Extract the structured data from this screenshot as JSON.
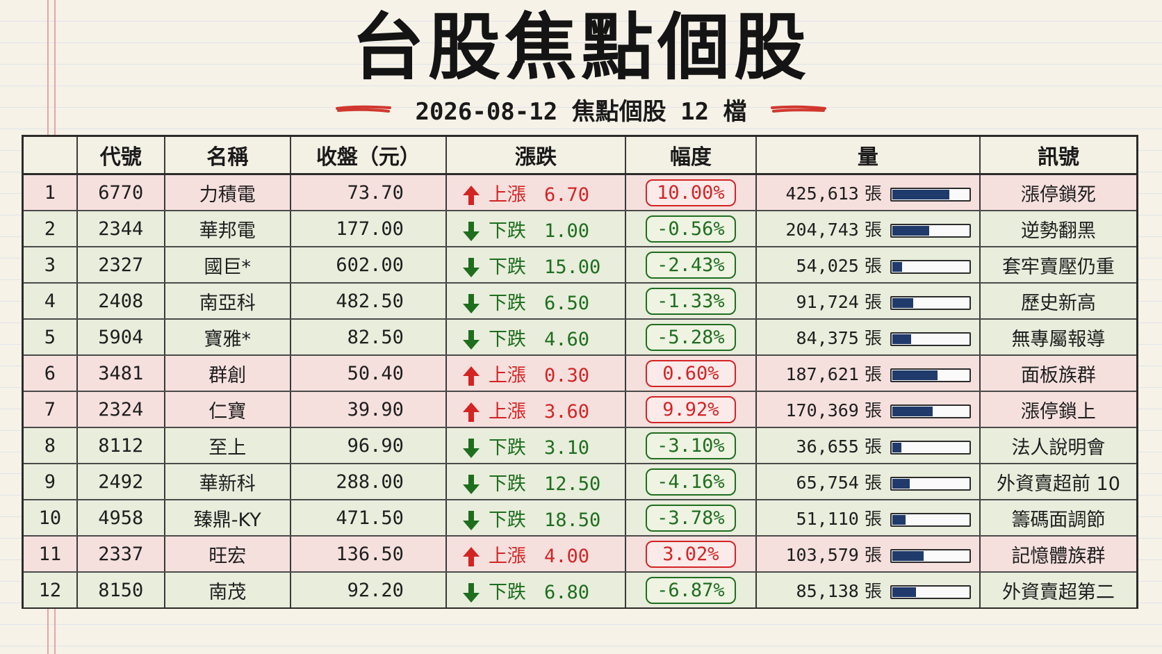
{
  "title": "台股焦點個股",
  "subtitle": "2026-08-12 焦點個股 12 檔",
  "colors": {
    "up": "#d32424",
    "down": "#1e6e1e",
    "bar": "#1f3a6b"
  },
  "headers": [
    "",
    "代號",
    "名稱",
    "收盤（元）",
    "漲跌",
    "幅度",
    "量",
    "訊號"
  ],
  "volume_unit": "張",
  "rows": [
    {
      "rank": "1",
      "code": "6770",
      "name": "力積電",
      "close": "73.70",
      "direction": "up",
      "change_word": "上漲",
      "change": "6.70",
      "pct": "10.00%",
      "volume": "425,613",
      "volume_level": 0.75,
      "signal": "漲停鎖死"
    },
    {
      "rank": "2",
      "code": "2344",
      "name": "華邦電",
      "close": "177.00",
      "direction": "down",
      "change_word": "下跌",
      "change": "1.00",
      "pct": "-0.56%",
      "volume": "204,743",
      "volume_level": 0.48,
      "signal": "逆勢翻黑"
    },
    {
      "rank": "3",
      "code": "2327",
      "name": "國巨*",
      "close": "602.00",
      "direction": "down",
      "change_word": "下跌",
      "change": "15.00",
      "pct": "-2.43%",
      "volume": "54,025",
      "volume_level": 0.13,
      "signal": "套牢賣壓仍重"
    },
    {
      "rank": "4",
      "code": "2408",
      "name": "南亞科",
      "close": "482.50",
      "direction": "down",
      "change_word": "下跌",
      "change": "6.50",
      "pct": "-1.33%",
      "volume": "91,724",
      "volume_level": 0.27,
      "signal": "歷史新高"
    },
    {
      "rank": "5",
      "code": "5904",
      "name": "寶雅*",
      "close": "82.50",
      "direction": "down",
      "change_word": "下跌",
      "change": "4.60",
      "pct": "-5.28%",
      "volume": "84,375",
      "volume_level": 0.25,
      "signal": "無專屬報導"
    },
    {
      "rank": "6",
      "code": "3481",
      "name": "群創",
      "close": "50.40",
      "direction": "up",
      "change_word": "上漲",
      "change": "0.30",
      "pct": "0.60%",
      "volume": "187,621",
      "volume_level": 0.59,
      "signal": "面板族群"
    },
    {
      "rank": "7",
      "code": "2324",
      "name": "仁寶",
      "close": "39.90",
      "direction": "up",
      "change_word": "上漲",
      "change": "3.60",
      "pct": "9.92%",
      "volume": "170,369",
      "volume_level": 0.53,
      "signal": "漲停鎖上"
    },
    {
      "rank": "8",
      "code": "8112",
      "name": "至上",
      "close": "96.90",
      "direction": "down",
      "change_word": "下跌",
      "change": "3.10",
      "pct": "-3.10%",
      "volume": "36,655",
      "volume_level": 0.12,
      "signal": "法人說明會"
    },
    {
      "rank": "9",
      "code": "2492",
      "name": "華新科",
      "close": "288.00",
      "direction": "down",
      "change_word": "下跌",
      "change": "12.50",
      "pct": "-4.16%",
      "volume": "65,754",
      "volume_level": 0.23,
      "signal": "外資賣超前 10"
    },
    {
      "rank": "10",
      "code": "4958",
      "name": "臻鼎-KY",
      "close": "471.50",
      "direction": "down",
      "change_word": "下跌",
      "change": "18.50",
      "pct": "-3.78%",
      "volume": "51,110",
      "volume_level": 0.17,
      "signal": "籌碼面調節"
    },
    {
      "rank": "11",
      "code": "2337",
      "name": "旺宏",
      "close": "136.50",
      "direction": "up",
      "change_word": "上漲",
      "change": "4.00",
      "pct": "3.02%",
      "volume": "103,579",
      "volume_level": 0.41,
      "signal": "記憶體族群"
    },
    {
      "rank": "12",
      "code": "8150",
      "name": "南茂",
      "close": "92.20",
      "direction": "down",
      "change_word": "下跌",
      "change": "6.80",
      "pct": "-6.87%",
      "volume": "85,138",
      "volume_level": 0.31,
      "signal": "外資賣超第二"
    }
  ]
}
